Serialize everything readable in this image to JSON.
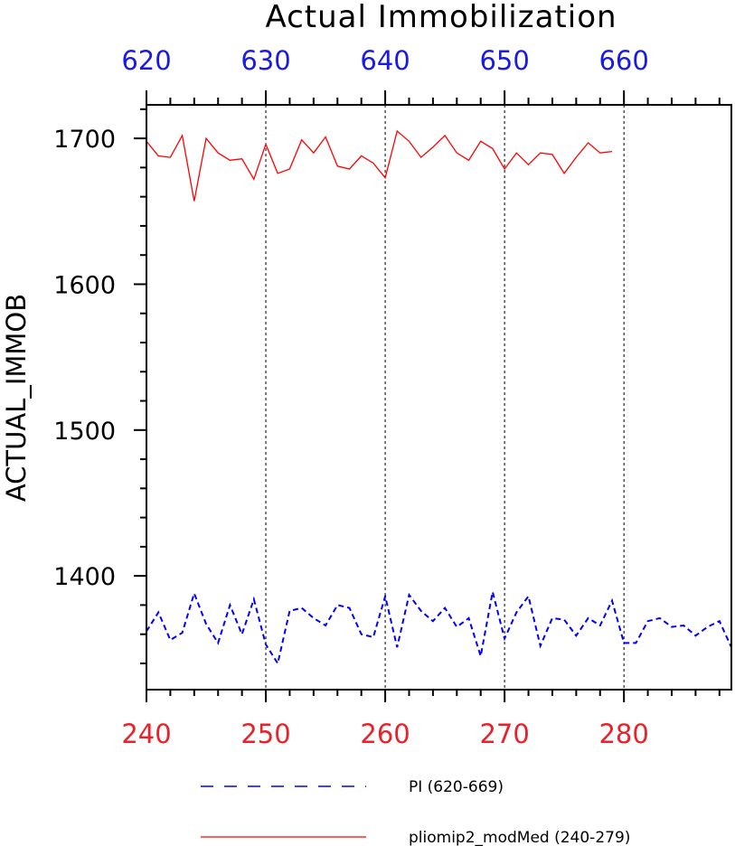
{
  "chart_data": {
    "type": "line",
    "title": "Actual Immobilization",
    "ylabel": "ACTUAL_IMMOB",
    "ylim": [
      1322,
      1723
    ],
    "yticks": [
      1400,
      1500,
      1600,
      1700
    ],
    "bottom_axis": {
      "range": [
        240,
        289
      ],
      "ticks": [
        240,
        250,
        260,
        270,
        280
      ],
      "color": "#e8212a"
    },
    "top_axis": {
      "range": [
        620,
        669
      ],
      "ticks": [
        620,
        630,
        640,
        650,
        660
      ],
      "color": "#1a1ae6"
    },
    "gridlines_x": [
      250,
      260,
      270,
      280
    ],
    "legend_position": "bottom",
    "series": [
      {
        "name": "PI (620-669)",
        "axis": "top",
        "color": "#0000ff",
        "style": "dashed",
        "x": [
          620,
          621,
          622,
          623,
          624,
          625,
          626,
          627,
          628,
          629,
          630,
          631,
          632,
          633,
          634,
          635,
          636,
          637,
          638,
          639,
          640,
          641,
          642,
          643,
          644,
          645,
          646,
          647,
          648,
          649,
          650,
          651,
          652,
          653,
          654,
          655,
          656,
          657,
          658,
          659,
          660,
          661,
          662,
          663,
          664,
          665,
          666,
          667,
          668,
          669
        ],
        "values": [
          1362,
          1375,
          1356,
          1361,
          1388,
          1367,
          1354,
          1380,
          1360,
          1384,
          1353,
          1340,
          1376,
          1378,
          1371,
          1366,
          1380,
          1378,
          1360,
          1358,
          1386,
          1351,
          1387,
          1376,
          1369,
          1378,
          1365,
          1371,
          1345,
          1389,
          1357,
          1375,
          1386,
          1352,
          1371,
          1370,
          1359,
          1371,
          1366,
          1383,
          1354,
          1354,
          1369,
          1371,
          1365,
          1366,
          1359,
          1365,
          1369,
          1351
        ]
      },
      {
        "name": "pliomip2_modMed (240-279)",
        "axis": "bottom",
        "color": "#ff0000",
        "style": "solid",
        "x": [
          240,
          241,
          242,
          243,
          244,
          245,
          246,
          247,
          248,
          249,
          250,
          251,
          252,
          253,
          254,
          255,
          256,
          257,
          258,
          259,
          260,
          261,
          262,
          263,
          264,
          265,
          266,
          267,
          268,
          269,
          270,
          271,
          272,
          273,
          274,
          275,
          276,
          277,
          278,
          279
        ],
        "values": [
          1698,
          1688,
          1687,
          1702,
          1657,
          1700,
          1690,
          1685,
          1686,
          1672,
          1696,
          1676,
          1679,
          1699,
          1690,
          1701,
          1681,
          1679,
          1688,
          1683,
          1673,
          1705,
          1698,
          1687,
          1694,
          1702,
          1690,
          1685,
          1698,
          1693,
          1679,
          1690,
          1682,
          1690,
          1689,
          1676,
          1687,
          1697,
          1690,
          1691
        ]
      }
    ]
  }
}
